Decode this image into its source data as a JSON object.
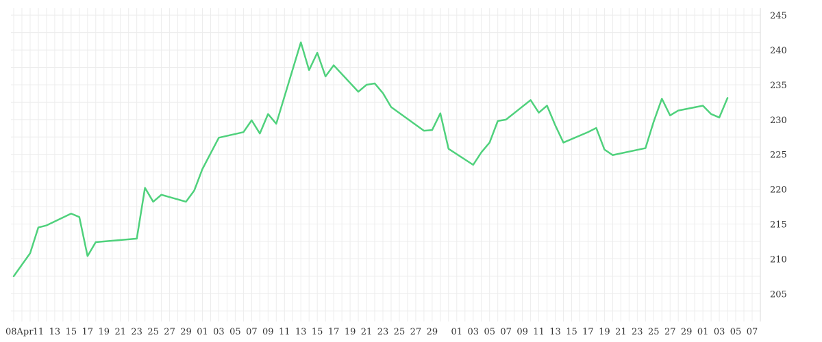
{
  "chart_data": {
    "type": "line",
    "title": "",
    "xlabel": "",
    "ylabel": "",
    "ylim": [
      201,
      246
    ],
    "grid": true,
    "y_axis_side": "right",
    "y_ticks": [
      205,
      210,
      215,
      220,
      225,
      230,
      235,
      240,
      245
    ],
    "x_tick_labels": [
      "08Apr",
      "11",
      "13",
      "15",
      "17",
      "19",
      "21",
      "23",
      "25",
      "27",
      "29",
      "01",
      "03",
      "05",
      "07",
      "09",
      "11",
      "13",
      "15",
      "17",
      "19",
      "21",
      "23",
      "25",
      "27",
      "29",
      "01",
      "03",
      "05",
      "07",
      "09",
      "11",
      "13",
      "15",
      "17",
      "19",
      "21",
      "23",
      "25",
      "27",
      "29",
      "01",
      "03",
      "05",
      "07"
    ],
    "series": [
      {
        "color": "#4fd17c",
        "x": [
          "Apr 08",
          "Apr 10",
          "Apr 11",
          "Apr 12",
          "Apr 15",
          "Apr 16",
          "Apr 17",
          "Apr 18",
          "Apr 23",
          "Apr 24",
          "Apr 25",
          "Apr 26",
          "Apr 29",
          "Apr 30",
          "May 01",
          "May 03",
          "May 06",
          "May 07",
          "May 08",
          "May 09",
          "May 10",
          "May 13",
          "May 14",
          "May 15",
          "May 16",
          "May 17",
          "May 20",
          "May 21",
          "May 22",
          "May 23",
          "May 24",
          "May 28",
          "May 29",
          "May 30",
          "May 31",
          "Jun 03",
          "Jun 04",
          "Jun 05",
          "Jun 06",
          "Jun 07",
          "Jun 10",
          "Jun 11",
          "Jun 12",
          "Jun 13",
          "Jun 14",
          "Jun 17",
          "Jun 18",
          "Jun 19",
          "Jun 20",
          "Jun 24",
          "Jun 25",
          "Jun 26",
          "Jun 27",
          "Jun 28",
          "Jul 01",
          "Jul 02",
          "Jul 03",
          "Jul 04"
        ],
        "values": [
          207.5,
          210.8,
          214.5,
          214.8,
          216.5,
          216.0,
          210.4,
          212.4,
          212.9,
          220.2,
          218.2,
          219.2,
          218.2,
          219.8,
          222.9,
          227.4,
          228.2,
          229.9,
          228.0,
          230.8,
          229.4,
          241.1,
          237.1,
          239.6,
          236.2,
          237.8,
          234.0,
          235.0,
          235.2,
          233.8,
          231.8,
          228.4,
          228.5,
          230.9,
          225.8,
          223.5,
          225.3,
          226.7,
          229.8,
          230.0,
          232.8,
          231.0,
          232.0,
          229.2,
          226.7,
          228.2,
          228.8,
          225.7,
          224.9,
          225.9,
          229.7,
          233.0,
          230.6,
          231.3,
          232.0,
          230.8,
          230.3,
          233.1
        ]
      }
    ]
  }
}
